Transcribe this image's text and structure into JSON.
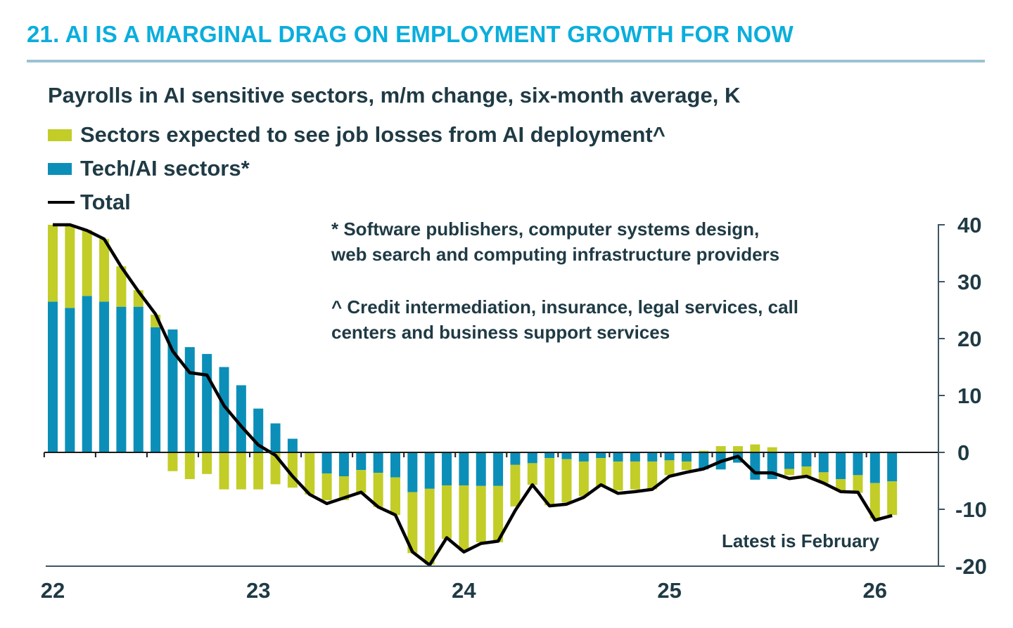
{
  "title": "21. AI IS A MARGINAL DRAG ON EMPLOYMENT GROWTH FOR NOW",
  "subtitle": "Payrolls in AI sensitive sectors, m/m change, six-month average, K",
  "legend": [
    {
      "label": "Sectors expected to see job losses from AI deployment^",
      "color": "#c2cd27",
      "kind": "bar"
    },
    {
      "label": "Tech/AI sectors*",
      "color": "#0b8fb8",
      "kind": "bar"
    },
    {
      "label": "Total",
      "color": "#000000",
      "kind": "line"
    }
  ],
  "notes": {
    "tech": [
      "* Software publishers, computer systems design,",
      "web search and computing infrastructure providers"
    ],
    "losses": [
      "^ Credit intermediation, insurance, legal services, call",
      "centers and business support services"
    ],
    "latest": "Latest is February"
  },
  "chart_data": {
    "type": "bar",
    "stacked": true,
    "title": "Payrolls in AI sensitive sectors, m/m change, six-month average, K",
    "xlabel": "",
    "ylabel": "",
    "ylim": [
      -20,
      40
    ],
    "yticks": [
      40,
      30,
      20,
      10,
      0,
      -10,
      -20
    ],
    "y_axis_side": "right",
    "x_start": "2022-01",
    "x_end": "2026-02",
    "frequency": "monthly",
    "xtick_labels": [
      {
        "label": "22",
        "index": 0
      },
      {
        "label": "23",
        "index": 12
      },
      {
        "label": "24",
        "index": 24
      },
      {
        "label": "25",
        "index": 36
      },
      {
        "label": "26",
        "index": 48
      }
    ],
    "x": [
      "2022-01",
      "2022-02",
      "2022-03",
      "2022-04",
      "2022-05",
      "2022-06",
      "2022-07",
      "2022-08",
      "2022-09",
      "2022-10",
      "2022-11",
      "2022-12",
      "2023-01",
      "2023-02",
      "2023-03",
      "2023-04",
      "2023-05",
      "2023-06",
      "2023-07",
      "2023-08",
      "2023-09",
      "2023-10",
      "2023-11",
      "2023-12",
      "2024-01",
      "2024-02",
      "2024-03",
      "2024-04",
      "2024-05",
      "2024-06",
      "2024-07",
      "2024-08",
      "2024-09",
      "2024-10",
      "2024-11",
      "2024-12",
      "2025-01",
      "2025-02",
      "2025-03",
      "2025-04",
      "2025-05",
      "2025-06",
      "2025-07",
      "2025-08",
      "2025-09",
      "2025-10",
      "2025-11",
      "2025-12",
      "2026-01",
      "2026-02"
    ],
    "series": [
      {
        "name": "Tech/AI sectors*",
        "type": "bar",
        "color": "#0b8fb8",
        "values": [
          26.5,
          25.4,
          27.5,
          26.5,
          25.6,
          25.6,
          22.0,
          21.6,
          18.5,
          17.3,
          15.0,
          11.8,
          7.7,
          5.1,
          2.4,
          0.0,
          -3.7,
          -4.2,
          -3.1,
          -3.6,
          -4.4,
          -7.0,
          -6.4,
          -5.8,
          -5.8,
          -5.9,
          -5.9,
          -2.2,
          -1.9,
          -1.0,
          -1.2,
          -1.6,
          -1.0,
          -1.6,
          -1.6,
          -1.6,
          -1.4,
          -1.6,
          -3.0,
          -3.0,
          -1.8,
          -4.8,
          -4.7,
          -2.9,
          -2.5,
          -3.5,
          -4.7,
          -4.0,
          -5.4,
          -5.1
        ]
      },
      {
        "name": "Sectors expected to see job losses from AI deployment^",
        "type": "bar",
        "color": "#c2cd27",
        "values": [
          13.5,
          14.6,
          11.6,
          11.0,
          7.1,
          2.9,
          2.2,
          -3.3,
          -4.7,
          -3.8,
          -6.5,
          -6.5,
          -6.5,
          -5.6,
          -6.2,
          -7.4,
          -4.7,
          -4.2,
          -4.0,
          -6.0,
          -6.6,
          -10.7,
          -13.3,
          -9.4,
          -11.5,
          -9.9,
          -9.9,
          -7.3,
          -3.8,
          -8.3,
          -7.6,
          -6.1,
          -4.9,
          -5.1,
          -4.9,
          -4.9,
          -2.6,
          -1.5,
          0.3,
          1.1,
          1.1,
          1.4,
          0.9,
          -1.1,
          -1.7,
          -1.9,
          -2.1,
          -3.1,
          -6.2,
          -5.9
        ]
      },
      {
        "name": "Total",
        "type": "line",
        "color": "#000000",
        "values": [
          40.0,
          40.0,
          39.0,
          37.5,
          32.6,
          28.3,
          24.3,
          17.8,
          14.0,
          13.6,
          8.2,
          4.6,
          1.3,
          -0.5,
          -4.2,
          -7.4,
          -9.0,
          -8.0,
          -7.0,
          -9.6,
          -11.0,
          -17.5,
          -19.8,
          -15.0,
          -17.5,
          -16.0,
          -15.6,
          -10.2,
          -5.7,
          -9.4,
          -9.1,
          -7.9,
          -5.7,
          -7.2,
          -6.9,
          -6.5,
          -4.2,
          -3.5,
          -2.9,
          -1.6,
          -0.7,
          -3.6,
          -3.6,
          -4.6,
          -4.2,
          -5.4,
          -6.9,
          -7.0,
          -11.9,
          -11.1
        ]
      }
    ],
    "grid": false,
    "legend_position": "top-left",
    "annotations": [
      "Latest is February"
    ]
  }
}
